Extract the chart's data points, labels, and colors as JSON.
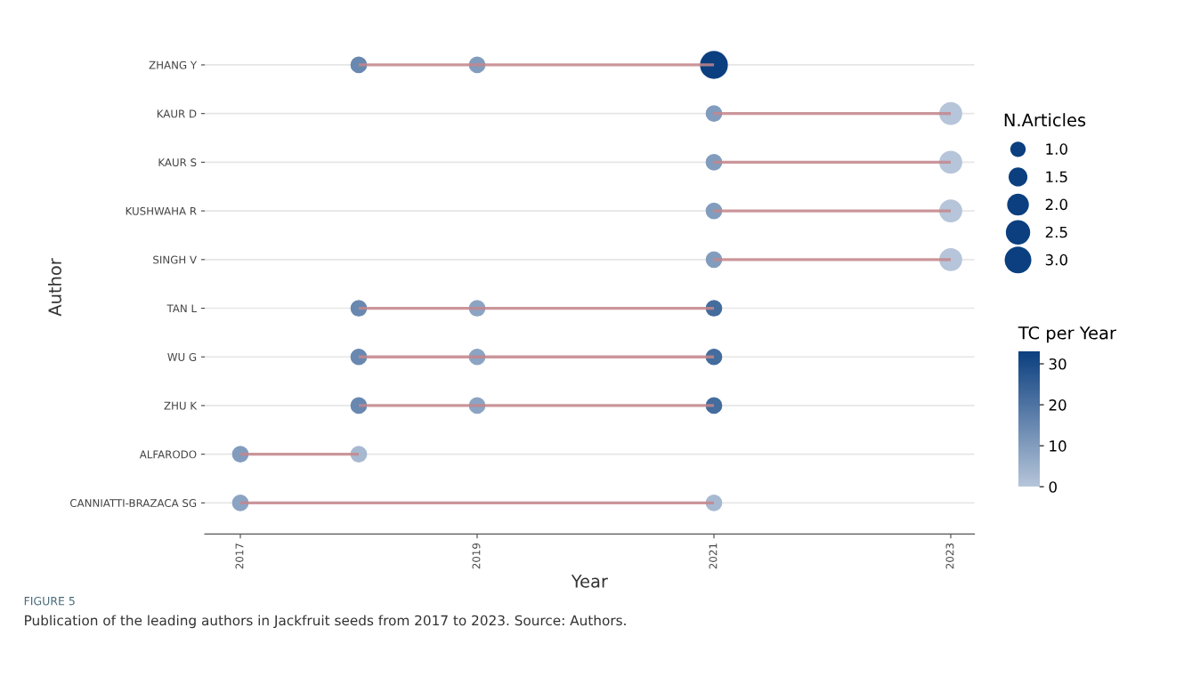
{
  "chart_data": {
    "type": "bubble",
    "orientation": "horizontal",
    "categories": [
      "ZHANG Y",
      "KAUR D",
      "KAUR S",
      "KUSHWAHA R",
      "SINGH V",
      "TAN L",
      "WU G",
      "ZHU K",
      "ALFARODO",
      "CANNIATTI-BRAZACA SG"
    ],
    "xlabel": "Year",
    "ylabel": "Author",
    "legend_title": "N.Articles",
    "clabel": "TC per Year",
    "xlim": [
      2016.7,
      2023.2
    ],
    "xticks": [
      2017,
      2019,
      2021,
      2023
    ],
    "clim": [
      0,
      33
    ],
    "cticks": [
      0,
      10,
      20,
      30
    ],
    "size_legend": [
      {
        "value": 1,
        "label": "1.0"
      },
      {
        "value": 1.5,
        "label": "1.5"
      },
      {
        "value": 2,
        "label": "2.0"
      },
      {
        "value": 2.5,
        "label": "2.5"
      },
      {
        "value": 3,
        "label": "3.0"
      }
    ],
    "grid": "y",
    "series": [
      {
        "type": "bar",
        "color": "#c4868c",
        "base": [
          2018,
          2021,
          2021,
          2021,
          2021,
          2018,
          2018,
          2018,
          2017,
          2017
        ],
        "values": [
          3,
          2,
          2,
          2,
          2,
          3,
          3,
          3,
          1,
          4
        ]
      },
      {
        "values": [
          null,
          null,
          null,
          null,
          null,
          null,
          null,
          null,
          2017,
          2017
        ],
        "sizes": [
          null,
          null,
          null,
          null,
          null,
          null,
          null,
          null,
          1,
          1
        ],
        "cvalues": [
          null,
          null,
          null,
          null,
          null,
          null,
          null,
          null,
          10,
          8
        ],
        "colors": [
          null,
          null,
          null,
          null,
          null,
          null,
          null,
          null,
          "#829cbe",
          "#8ca4c3"
        ]
      },
      {
        "values": [
          2018,
          null,
          null,
          null,
          null,
          2018,
          2018,
          2018,
          2018,
          null
        ],
        "sizes": [
          1,
          null,
          null,
          null,
          null,
          1,
          1,
          1,
          1,
          null
        ],
        "cvalues": [
          15,
          null,
          null,
          null,
          null,
          15,
          15,
          15,
          3,
          null
        ],
        "colors": [
          "#6888b0",
          null,
          null,
          null,
          null,
          "#6888b0",
          "#6888b0",
          "#6888b0",
          "#a7b9d1",
          null
        ]
      },
      {
        "values": [
          2019,
          null,
          null,
          null,
          null,
          2019,
          2019,
          2019,
          null,
          null
        ],
        "sizes": [
          1,
          null,
          null,
          null,
          null,
          1,
          1,
          1,
          null,
          null
        ],
        "cvalues": [
          10,
          null,
          null,
          null,
          null,
          8,
          8,
          8,
          null,
          null
        ],
        "colors": [
          "#829cbe",
          null,
          null,
          null,
          null,
          "#8ca4c3",
          "#8ca4c3",
          "#8ca4c3",
          null,
          null
        ]
      },
      {
        "values": [
          2021,
          2021,
          2021,
          2021,
          2021,
          2021,
          2021,
          2021,
          null,
          2021
        ],
        "sizes": [
          3,
          1,
          1,
          1,
          1,
          1,
          1,
          1,
          null,
          1
        ],
        "cvalues": [
          33,
          10,
          10,
          10,
          10,
          22,
          22,
          22,
          null,
          3
        ],
        "colors": [
          "#0b3f7f",
          "#829cbe",
          "#829cbe",
          "#829cbe",
          "#829cbe",
          "#446c9d",
          "#446c9d",
          "#446c9d",
          null,
          "#a7b9d1"
        ]
      },
      {
        "values": [
          null,
          2023,
          2023,
          2023,
          2023,
          null,
          null,
          null,
          null,
          null
        ],
        "sizes": [
          null,
          2,
          2,
          2,
          2,
          null,
          null,
          null,
          null,
          null
        ],
        "cvalues": [
          null,
          0,
          0,
          0,
          0,
          null,
          null,
          null,
          null,
          null
        ],
        "colors": [
          null,
          "#b6c5d9",
          "#b6c5d9",
          "#b6c5d9",
          "#b6c5d9",
          null,
          null,
          null,
          null,
          null
        ]
      }
    ],
    "annotations": [
      "FIGURE 5",
      "Publication of the leading authors in Jackfruit seeds from 2017 to 2023. Source: Authors."
    ]
  }
}
